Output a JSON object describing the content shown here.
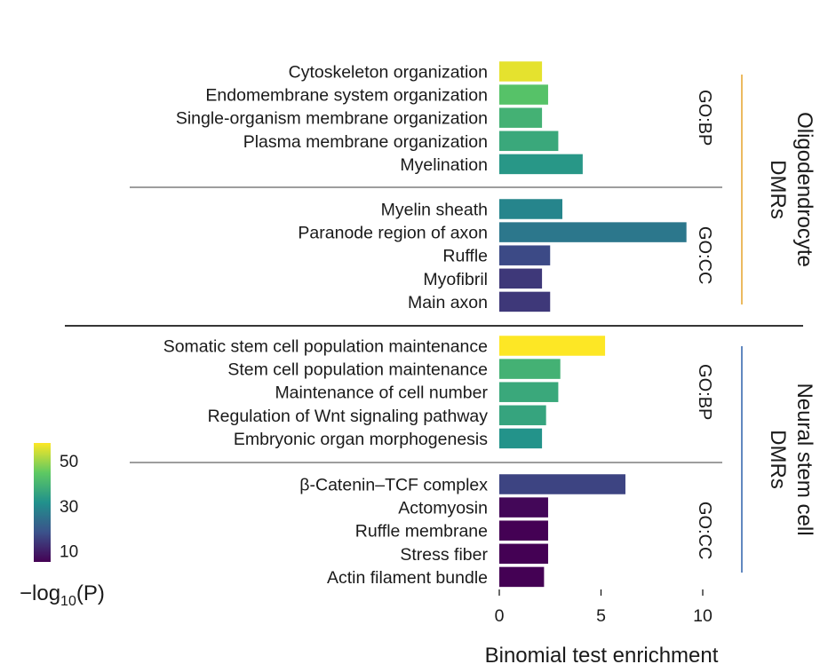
{
  "chart_data": {
    "type": "bar",
    "orientation": "horizontal",
    "xlabel": "Binomial test enrichment",
    "xlim": [
      0,
      10
    ],
    "xticks": [
      0,
      5,
      10
    ],
    "colormap": "viridis",
    "colorbar": {
      "title_prefix": "−log",
      "title_subscript": "10",
      "title_suffix": "(P)",
      "range": [
        5,
        58
      ],
      "ticks": [
        10,
        30,
        50
      ]
    },
    "groups": [
      {
        "name": "Oligodendrocyte DMRs",
        "name_lines": [
          "Oligodendrocyte",
          "DMRs"
        ],
        "accent_color": "#e8a838",
        "subgroups": [
          {
            "label": "GO:BP",
            "terms": [
              {
                "term": "Cytoskeleton organization",
                "enrichment": 2.1,
                "neg_log10_p": 56
              },
              {
                "term": "Endomembrane system organization",
                "enrichment": 2.4,
                "neg_log10_p": 43
              },
              {
                "term": "Single-organism membrane organization",
                "enrichment": 2.1,
                "neg_log10_p": 39
              },
              {
                "term": "Plasma membrane organization",
                "enrichment": 2.9,
                "neg_log10_p": 37
              },
              {
                "term": "Myelination",
                "enrichment": 4.1,
                "neg_log10_p": 33
              }
            ]
          },
          {
            "label": "GO:CC",
            "terms": [
              {
                "term": "Myelin sheath",
                "enrichment": 3.1,
                "neg_log10_p": 29
              },
              {
                "term": "Paranode region of axon",
                "enrichment": 9.2,
                "neg_log10_p": 26
              },
              {
                "term": "Ruffle",
                "enrichment": 2.5,
                "neg_log10_p": 17
              },
              {
                "term": "Myofibril",
                "enrichment": 2.1,
                "neg_log10_p": 14
              },
              {
                "term": "Main axon",
                "enrichment": 2.5,
                "neg_log10_p": 14
              }
            ]
          }
        ]
      },
      {
        "name": "Neural stem cell DMRs",
        "name_lines": [
          "Neural stem cell",
          "DMRs"
        ],
        "accent_color": "#3a6bb0",
        "subgroups": [
          {
            "label": "GO:BP",
            "terms": [
              {
                "term": "Somatic stem cell population maintenance",
                "enrichment": 5.2,
                "neg_log10_p": 58
              },
              {
                "term": "Stem cell population maintenance",
                "enrichment": 3.0,
                "neg_log10_p": 39
              },
              {
                "term": "Maintenance of cell number",
                "enrichment": 2.9,
                "neg_log10_p": 37
              },
              {
                "term": "Regulation of Wnt signaling pathway",
                "enrichment": 2.3,
                "neg_log10_p": 36
              },
              {
                "term": "Embryonic organ morphogenesis",
                "enrichment": 2.1,
                "neg_log10_p": 32
              }
            ]
          },
          {
            "label": "GO:CC",
            "terms": [
              {
                "term": "β-Catenin–TCF complex",
                "enrichment": 6.2,
                "neg_log10_p": 16
              },
              {
                "term": "Actomyosin",
                "enrichment": 2.4,
                "neg_log10_p": 6
              },
              {
                "term": "Ruffle membrane",
                "enrichment": 2.4,
                "neg_log10_p": 5
              },
              {
                "term": "Stress fiber",
                "enrichment": 2.4,
                "neg_log10_p": 5
              },
              {
                "term": "Actin filament bundle",
                "enrichment": 2.2,
                "neg_log10_p": 5
              }
            ]
          }
        ]
      }
    ]
  }
}
